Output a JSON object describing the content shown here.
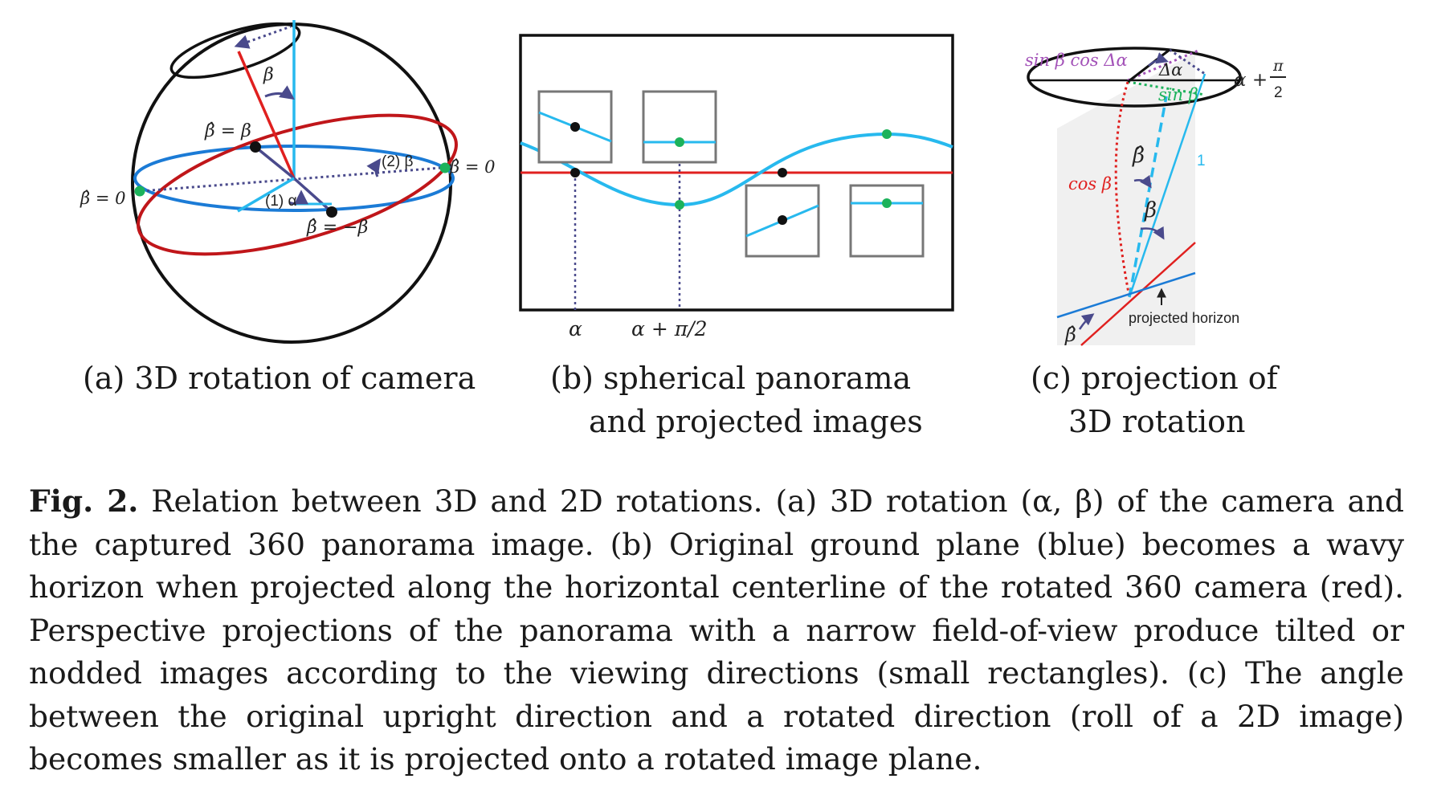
{
  "panel_a": {
    "label_beta": "β",
    "label_betahat_eq_beta": "β̂ = β",
    "label_betahat_zero_right": "β̂ = 0",
    "label_betahat_zero_left": "β̂ = 0",
    "label_step2": "(2) β",
    "label_step1": "(1) α",
    "label_betahat_eq_negbeta": "β̂ = −β",
    "caption": "(a) 3D rotation of camera"
  },
  "panel_b": {
    "axis_alpha": "α",
    "axis_alpha_pi2": "α + π/2",
    "caption_line1": "(b) spherical panorama",
    "caption_line2": "and projected images"
  },
  "panel_c": {
    "label_sinb_cosda": "sin β cos Δα",
    "label_dalpha": "Δα",
    "label_sinb": "sin β",
    "label_alpha_plus": "α +",
    "label_pi": "π",
    "label_two": "2",
    "label_betahat": "β̂",
    "label_cosb": "cos β",
    "label_one": "1",
    "label_beta": "β",
    "label_projected_horizon": "projected horizon",
    "label_betahat_bottom": "β̂",
    "caption_line1": "(c) projection of",
    "caption_line2": "3D rotation"
  },
  "colors": {
    "red": "#e0201f",
    "dark_red": "#c0161a",
    "blue": "#1b7bd6",
    "cyan": "#27b9ee",
    "green": "#1cb25b",
    "purple": "#a352b8",
    "navy": "#4a4a8c"
  },
  "caption": {
    "fig_label": "Fig. 2.",
    "text": "Relation between 3D and 2D rotations. (a) 3D rotation (α, β) of the camera and the captured 360 panorama image. (b) Original ground plane (blue) becomes a wavy horizon when projected along the horizontal centerline of the rotated 360 camera (red). Perspective projections of the panorama with a narrow field-of-view produce tilted or nodded images according to the viewing directions (small rectangles). (c) The angle between the original upright direction and a rotated direction (roll of a 2D image) becomes smaller as it is projected onto a rotated image plane."
  }
}
